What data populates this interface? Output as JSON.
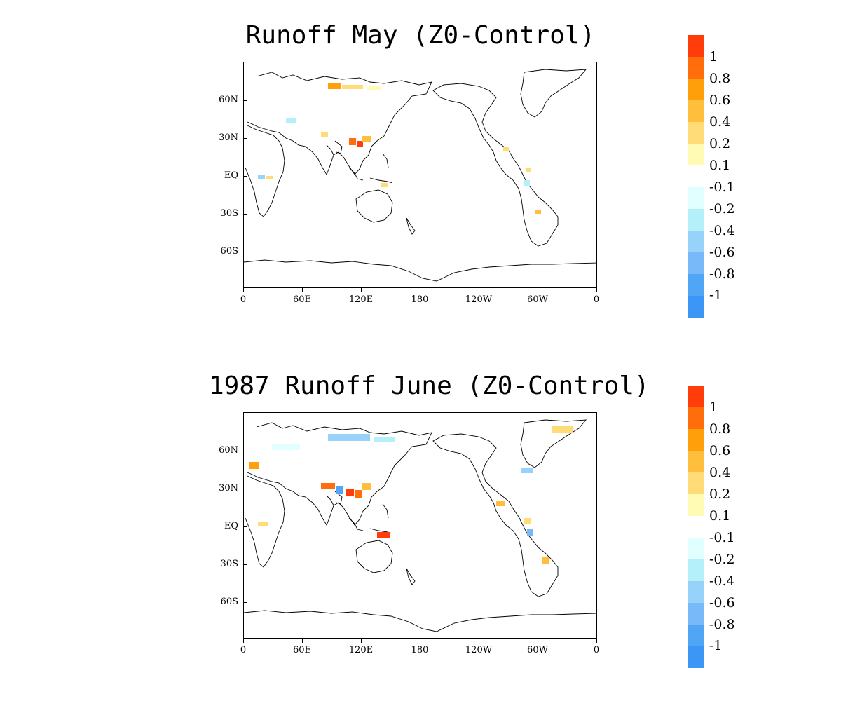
{
  "panels": [
    {
      "title": "Runoff May (Z0-Control)",
      "lat_labels": [
        "60N",
        "30N",
        "EQ",
        "30S",
        "60S"
      ],
      "lon_labels": [
        "0",
        "60E",
        "120E",
        "180",
        "120W",
        "60W",
        "0"
      ],
      "colorbar_labels": [
        "1",
        "0.8",
        "0.6",
        "0.4",
        "0.2",
        "0.1",
        "-0.1",
        "-0.2",
        "-0.4",
        "-0.6",
        "-0.8",
        "-1"
      ]
    },
    {
      "title": "1987 Runoff June (Z0-Control)",
      "lat_labels": [
        "60N",
        "30N",
        "EQ",
        "30S",
        "60S"
      ],
      "lon_labels": [
        "0",
        "60E",
        "120E",
        "180",
        "120W",
        "60W",
        "0"
      ],
      "colorbar_labels": [
        "1",
        "0.8",
        "0.6",
        "0.4",
        "0.2",
        "0.1",
        "-0.1",
        "-0.2",
        "-0.4",
        "-0.6",
        "-0.8",
        "-1"
      ]
    }
  ],
  "colorbar_colors": [
    "#ff3c0a",
    "#ff6e0a",
    "#ff9f0a",
    "#ffbe3c",
    "#ffdc78",
    "#fffab4",
    "#ffffff",
    "#e1ffff",
    "#b4f0fa",
    "#96d2fa",
    "#78b9fa",
    "#50a5f5",
    "#3c96f5"
  ]
}
